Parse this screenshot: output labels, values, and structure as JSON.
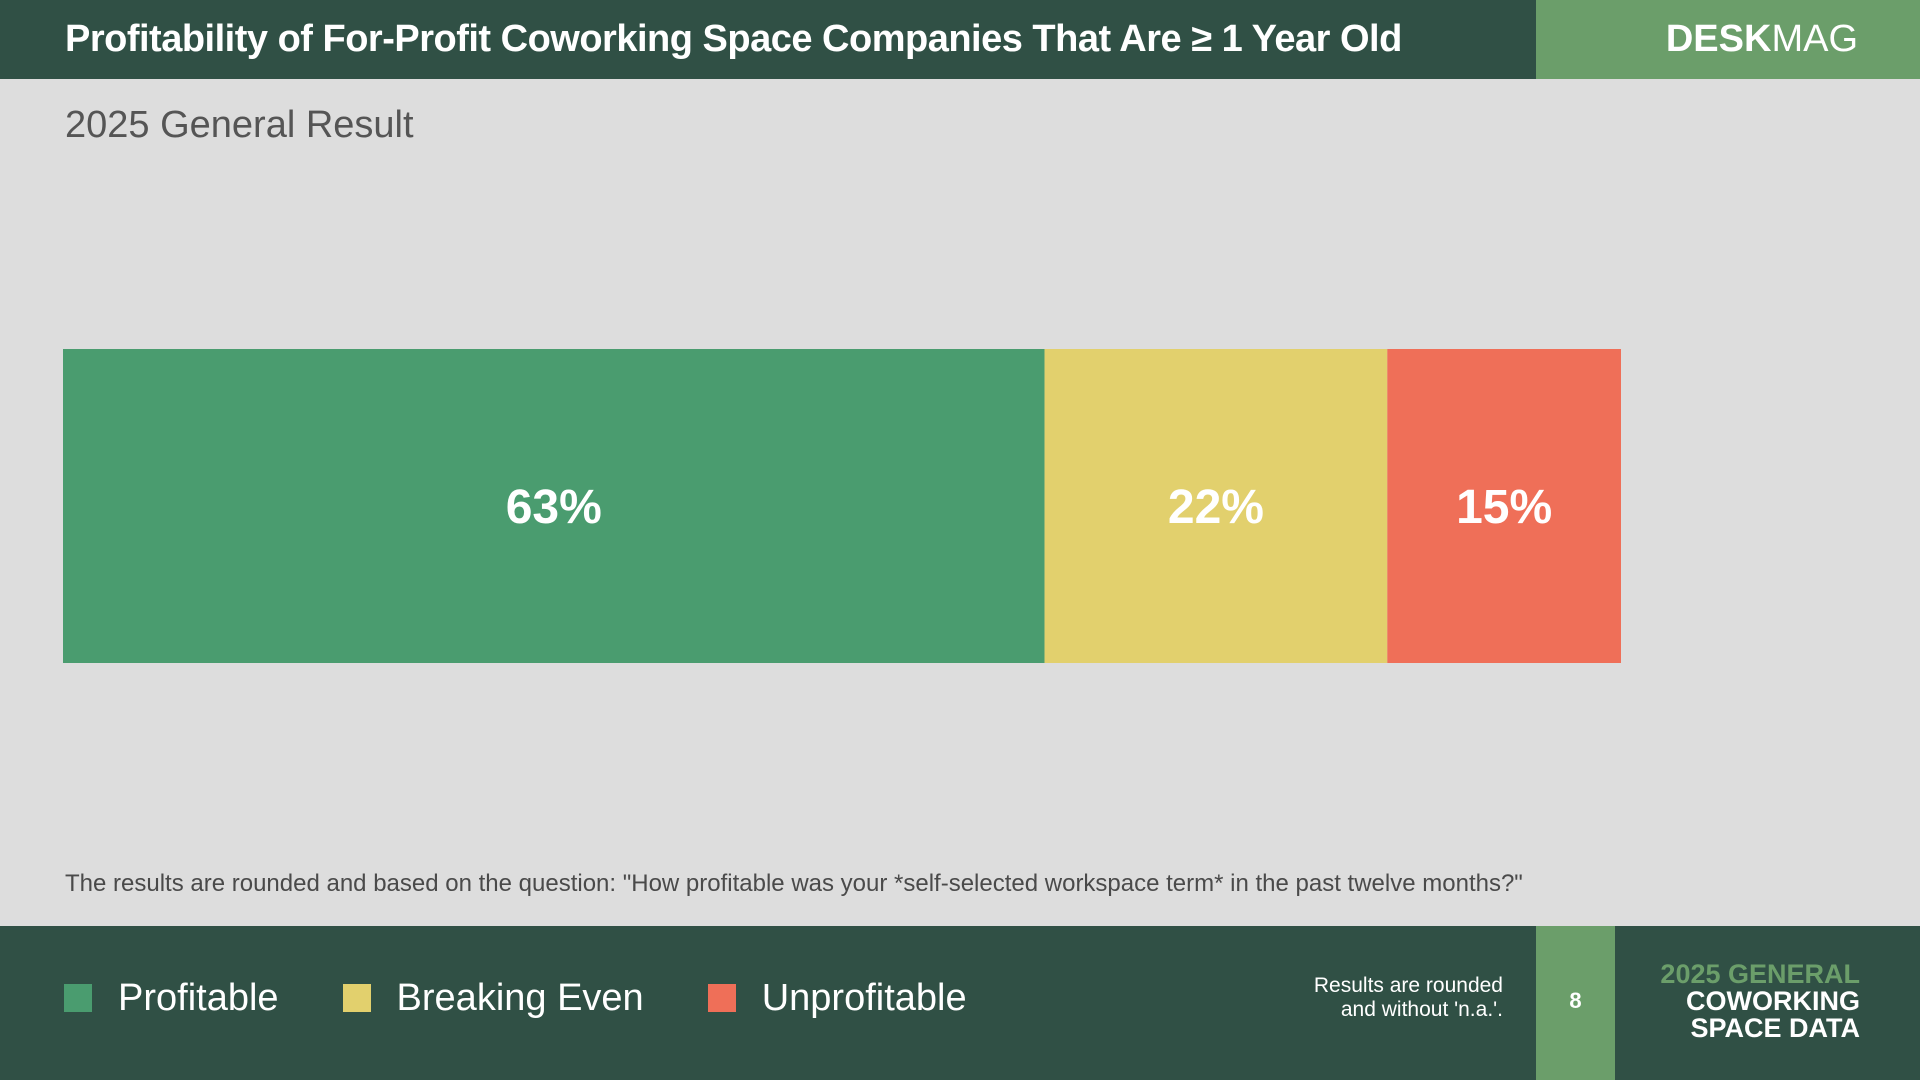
{
  "header": {
    "title": "Profitability of For-Profit Coworking Space Companies That Are ≥ 1 Year Old",
    "brand_bold": "DESK",
    "brand_light": "MAG"
  },
  "subtitle": "2025 General Result",
  "note": "The results are rounded and based on the question: \"How profitable was your *self-selected workspace term* in the past twelve months?\"",
  "footer": {
    "legend": [
      {
        "label": "Profitable",
        "color": "#4a9c6f"
      },
      {
        "label": "Breaking Even",
        "color": "#e2d06d"
      },
      {
        "label": "Unprofitable",
        "color": "#ef6f58"
      }
    ],
    "rounded_note_line1": "Results are rounded",
    "rounded_note_line2": "and without 'n.a.'.",
    "page_number": "8",
    "brand_line1": "2025 GENERAL",
    "brand_line2": "COWORKING",
    "brand_line3": "SPACE DATA"
  },
  "chart_data": {
    "type": "bar",
    "orientation": "horizontal",
    "stacked": true,
    "value_unit": "%",
    "xlim": [
      0,
      100
    ],
    "series": [
      {
        "name": "Profitable",
        "value": 63,
        "label": "63%",
        "color": "#4a9c6f"
      },
      {
        "name": "Breaking Even",
        "value": 22,
        "label": "22%",
        "color": "#e2d06d"
      },
      {
        "name": "Unprofitable",
        "value": 15,
        "label": "15%",
        "color": "#ef6f58"
      }
    ]
  }
}
